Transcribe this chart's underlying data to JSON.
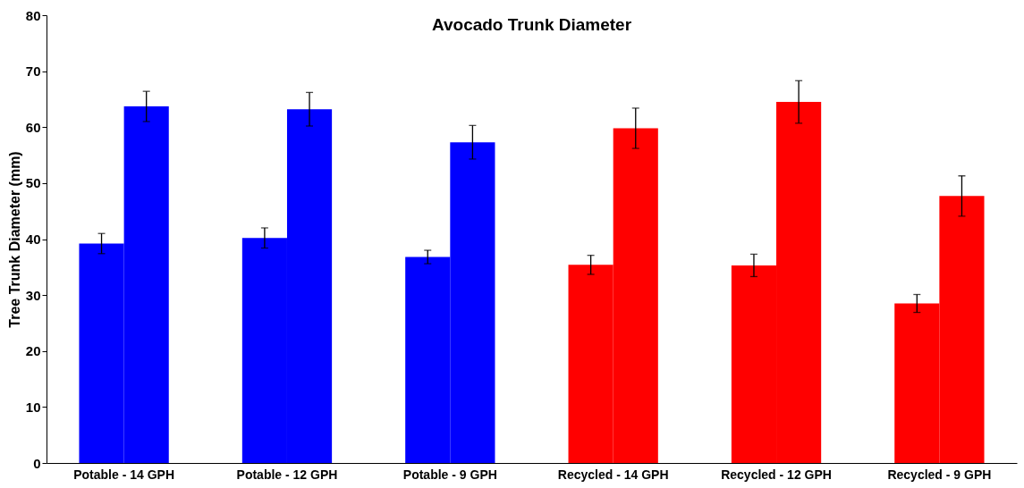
{
  "chart_data": {
    "type": "bar",
    "title": "Avocado Trunk Diameter",
    "ylabel": "Tree Trunk Diameter (mm)",
    "categories": [
      "Potable - 14 GPH",
      "Potable - 12 GPH",
      "Potable - 9 GPH",
      "Recycled - 14 GPH",
      "Recycled - 12 GPH",
      "Recycled - 9 GPH"
    ],
    "series": [
      {
        "colors": [
          "#0000ff",
          "#0000ff",
          "#0000ff",
          "#ff0000",
          "#ff0000",
          "#ff0000"
        ],
        "values": [
          39.2,
          40.2,
          36.8,
          35.4,
          35.3,
          28.5
        ],
        "errors": [
          1.8,
          1.8,
          1.2,
          1.7,
          2.0,
          1.6
        ]
      },
      {
        "colors": [
          "#0000ff",
          "#0000ff",
          "#0000ff",
          "#ff0000",
          "#ff0000",
          "#ff0000"
        ],
        "values": [
          63.7,
          63.2,
          57.3,
          59.8,
          64.5,
          47.7
        ],
        "errors": [
          2.7,
          3.0,
          3.0,
          3.6,
          3.8,
          3.6
        ]
      }
    ],
    "ylim": [
      0,
      80
    ],
    "yticks": [
      0,
      10,
      20,
      30,
      40,
      50,
      60,
      70,
      80
    ],
    "grid": false
  }
}
